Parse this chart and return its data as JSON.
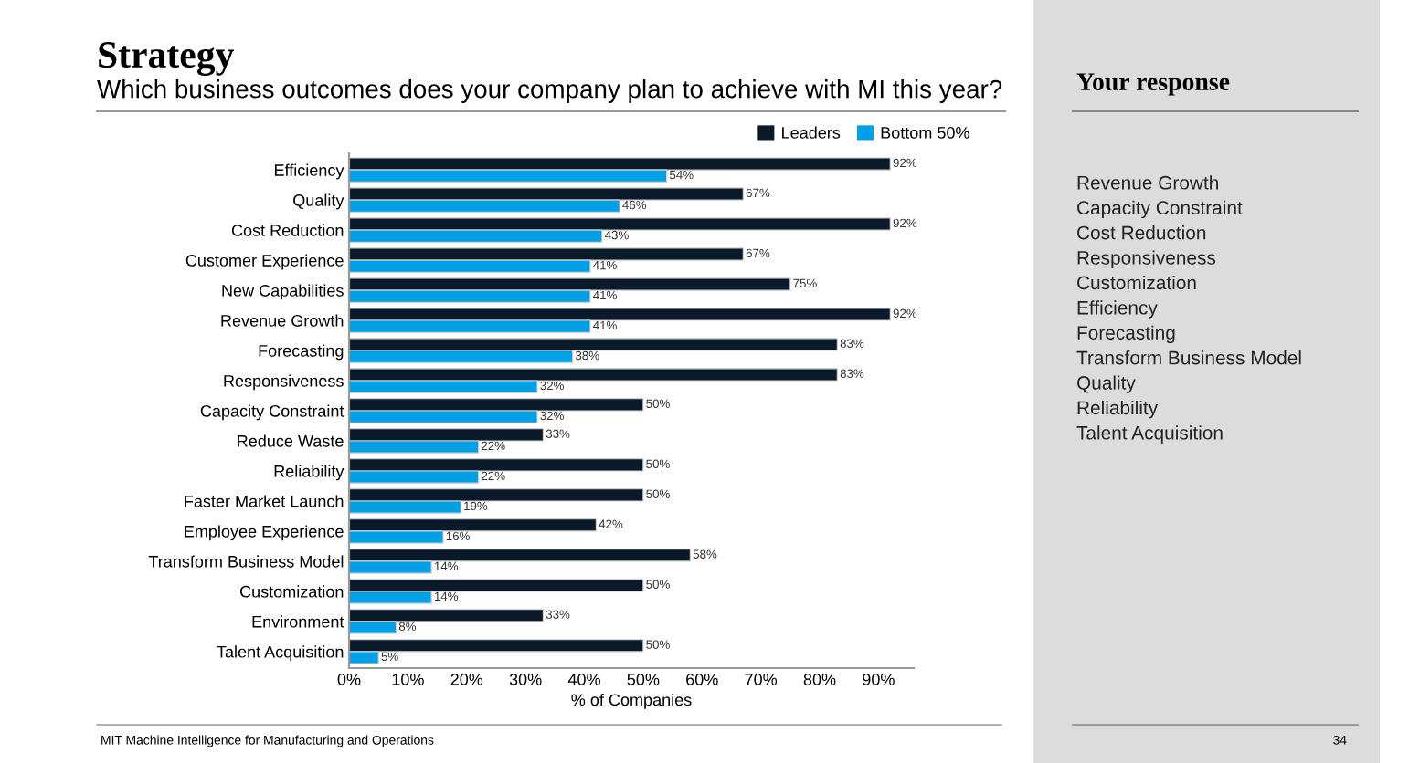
{
  "chart_data": [
    {
      "type": "bar",
      "orientation": "horizontal",
      "title": "Strategy",
      "subtitle": "Which business outcomes does your company plan to achieve with MI this year?",
      "xlabel": "% of Companies",
      "categories": [
        "Efficiency",
        "Quality",
        "Cost Reduction",
        "Customer Experience",
        "New Capabilities",
        "Revenue Growth",
        "Forecasting",
        "Responsiveness",
        "Capacity Constraint",
        "Reduce Waste",
        "Reliability",
        "Faster Market Launch",
        "Employee Experience",
        "Transform Business Model",
        "Customization",
        "Environment",
        "Talent Acquisition"
      ],
      "series": [
        {
          "name": "Leaders",
          "color": "#0b1a2a",
          "values": [
            92,
            67,
            92,
            67,
            75,
            92,
            83,
            83,
            50,
            33,
            50,
            50,
            42,
            58,
            50,
            33,
            50
          ],
          "value_labels": [
            "92%",
            "67%",
            "92%",
            "67%",
            "75%",
            "92%",
            "83%",
            "83%",
            "50%",
            "33%",
            "50%",
            "50%",
            "42%",
            "58%",
            "50%",
            "33%",
            "50%"
          ]
        },
        {
          "name": "Bottom 50%",
          "color": "#00a0e6",
          "values": [
            54,
            46,
            43,
            41,
            41,
            41,
            38,
            32,
            32,
            22,
            22,
            19,
            16,
            14,
            14,
            8,
            5
          ],
          "value_labels": [
            "54%",
            "46%",
            "43%",
            "41%",
            "41%",
            "41%",
            "38%",
            "32%",
            "32%",
            "22%",
            "22%",
            "19%",
            "16%",
            "14%",
            "14%",
            "8%",
            "5%"
          ]
        }
      ],
      "xlim": [
        0,
        96
      ],
      "xticks": [
        {
          "value": 0,
          "label": "0%"
        },
        {
          "value": 10,
          "label": "10%"
        },
        {
          "value": 20,
          "label": "20%"
        },
        {
          "value": 30,
          "label": "30%"
        },
        {
          "value": 40,
          "label": "40%"
        },
        {
          "value": 50,
          "label": "50%"
        },
        {
          "value": 60,
          "label": "60%"
        },
        {
          "value": 70,
          "label": "70%"
        },
        {
          "value": 80,
          "label": "80%"
        },
        {
          "value": 90,
          "label": "90%"
        }
      ],
      "legend": "top right",
      "grid": false,
      "annotations": [
        "MIT Machine Intelligence for Manufacturing and Operations"
      ]
    },
    {
      "type": "other",
      "title": "Your response",
      "annotations": [
        "Revenue Growth",
        "Capacity Constraint",
        "Cost Reduction",
        "Responsiveness",
        "Customization",
        "Efficiency",
        "Forecasting",
        "Transform Business Model",
        "Quality",
        "Reliability",
        "Talent Acquisition",
        "34"
      ]
    }
  ]
}
